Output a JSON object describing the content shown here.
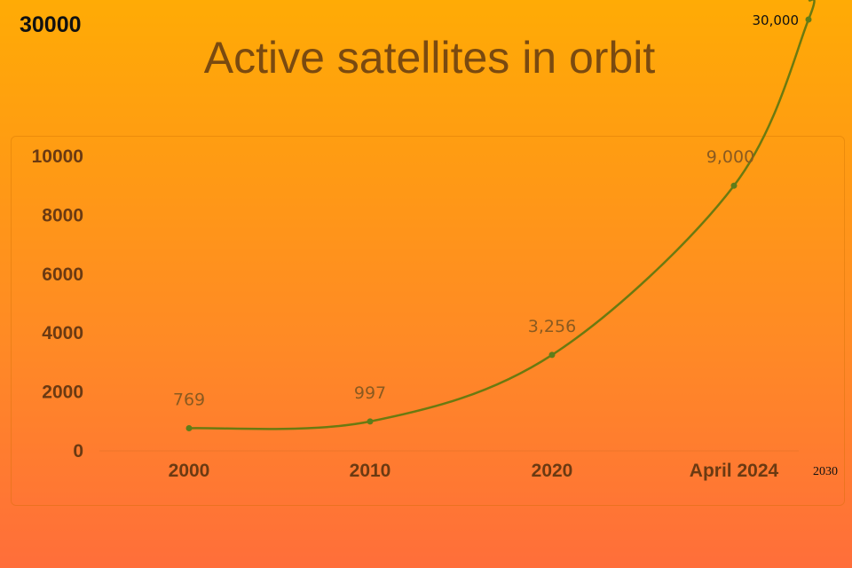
{
  "chart_data": {
    "type": "line",
    "title": "Active satellites in orbit",
    "top_left_label": "30000",
    "xlabel": "",
    "ylabel": "",
    "ylim": [
      0,
      10000
    ],
    "yticks": [
      "0",
      "2000",
      "4000",
      "6000",
      "8000",
      "10000"
    ],
    "categories": [
      "2000",
      "2010",
      "2020",
      "April 2024",
      "2030"
    ],
    "values": [
      769,
      997,
      3256,
      9000,
      30000
    ],
    "data_labels": [
      "769",
      "997",
      "3,256",
      "9,000",
      "30,000"
    ],
    "grid": false,
    "colors": {
      "line": "#6b7a10",
      "point": "#5e7d1a",
      "tick": "#6b3a12",
      "title": "#7a4a10",
      "label": "#8a5a20"
    }
  }
}
